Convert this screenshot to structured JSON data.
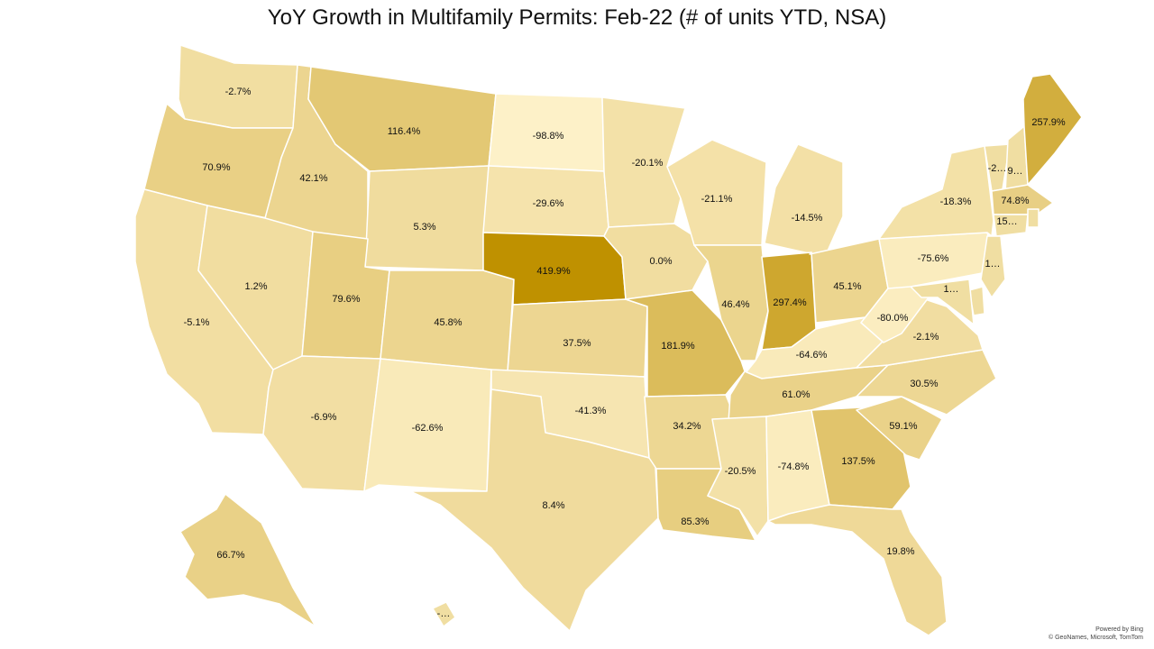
{
  "title": "YoY Growth in Multifamily Permits: Feb-22 (# of units YTD, NSA)",
  "attribution": {
    "line1": "Powered by Bing",
    "line2": "© GeoNames, Microsoft, TomTom"
  },
  "colors": {
    "low": "#fdf1c8",
    "mid": "#f1dda0",
    "high": "#bf9100",
    "border": "#ffffff"
  },
  "chart_data": {
    "type": "choropleth",
    "title": "YoY Growth in Multifamily Permits: Feb-22 (# of units YTD, NSA)",
    "unit": "%",
    "states": [
      {
        "state": "WA",
        "label": "-2.7%",
        "value": -2.7
      },
      {
        "state": "OR",
        "label": "70.9%",
        "value": 70.9
      },
      {
        "state": "CA",
        "label": "-5.1%",
        "value": -5.1
      },
      {
        "state": "ID",
        "label": "42.1%",
        "value": 42.1
      },
      {
        "state": "NV",
        "label": "1.2%",
        "value": 1.2
      },
      {
        "state": "MT",
        "label": "116.4%",
        "value": 116.4
      },
      {
        "state": "WY",
        "label": "5.3%",
        "value": 5.3
      },
      {
        "state": "UT",
        "label": "79.6%",
        "value": 79.6
      },
      {
        "state": "AZ",
        "label": "-6.9%",
        "value": -6.9
      },
      {
        "state": "CO",
        "label": "45.8%",
        "value": 45.8
      },
      {
        "state": "NM",
        "label": "-62.6%",
        "value": -62.6
      },
      {
        "state": "ND",
        "label": "-98.8%",
        "value": -98.8
      },
      {
        "state": "SD",
        "label": "-29.6%",
        "value": -29.6
      },
      {
        "state": "NE",
        "label": "419.9%",
        "value": 419.9
      },
      {
        "state": "KS",
        "label": "37.5%",
        "value": 37.5
      },
      {
        "state": "OK",
        "label": "-41.3%",
        "value": -41.3
      },
      {
        "state": "TX",
        "label": "8.4%",
        "value": 8.4
      },
      {
        "state": "MN",
        "label": "-20.1%",
        "value": -20.1
      },
      {
        "state": "IA",
        "label": "0.0%",
        "value": 0.0
      },
      {
        "state": "MO",
        "label": "181.9%",
        "value": 181.9
      },
      {
        "state": "AR",
        "label": "34.2%",
        "value": 34.2
      },
      {
        "state": "LA",
        "label": "85.3%",
        "value": 85.3
      },
      {
        "state": "WI",
        "label": "-21.1%",
        "value": -21.1
      },
      {
        "state": "IL",
        "label": "46.4%",
        "value": 46.4
      },
      {
        "state": "MI",
        "label": "-14.5%",
        "value": -14.5
      },
      {
        "state": "IN",
        "label": "297.4%",
        "value": 297.4
      },
      {
        "state": "OH",
        "label": "45.1%",
        "value": 45.1
      },
      {
        "state": "KY",
        "label": "-64.6%",
        "value": -64.6
      },
      {
        "state": "TN",
        "label": "61.0%",
        "value": 61.0
      },
      {
        "state": "MS",
        "label": "-20.5%",
        "value": -20.5
      },
      {
        "state": "AL",
        "label": "-74.8%",
        "value": -74.8
      },
      {
        "state": "GA",
        "label": "137.5%",
        "value": 137.5
      },
      {
        "state": "FL",
        "label": "19.8%",
        "value": 19.8
      },
      {
        "state": "SC",
        "label": "59.1%",
        "value": 59.1
      },
      {
        "state": "NC",
        "label": "30.5%",
        "value": 30.5
      },
      {
        "state": "VA",
        "label": "-2.1%",
        "value": -2.1
      },
      {
        "state": "WV",
        "label": "-80.0%",
        "value": -80.0
      },
      {
        "state": "PA",
        "label": "-75.6%",
        "value": -75.6
      },
      {
        "state": "NY",
        "label": "-18.3%",
        "value": -18.3
      },
      {
        "state": "VT",
        "label": "-2…",
        "value": null
      },
      {
        "state": "NH",
        "label": "9…",
        "value": null
      },
      {
        "state": "ME",
        "label": "257.9%",
        "value": 257.9
      },
      {
        "state": "MA",
        "label": "74.8%",
        "value": 74.8
      },
      {
        "state": "CT",
        "label": "15…",
        "value": null
      },
      {
        "state": "RI",
        "label": "",
        "value": null
      },
      {
        "state": "NJ",
        "label": "1…",
        "value": null
      },
      {
        "state": "DE",
        "label": "",
        "value": null
      },
      {
        "state": "MD",
        "label": "1…",
        "value": null
      },
      {
        "state": "AK",
        "label": "66.7%",
        "value": 66.7
      },
      {
        "state": "HI",
        "label": "-…",
        "value": null
      }
    ]
  }
}
